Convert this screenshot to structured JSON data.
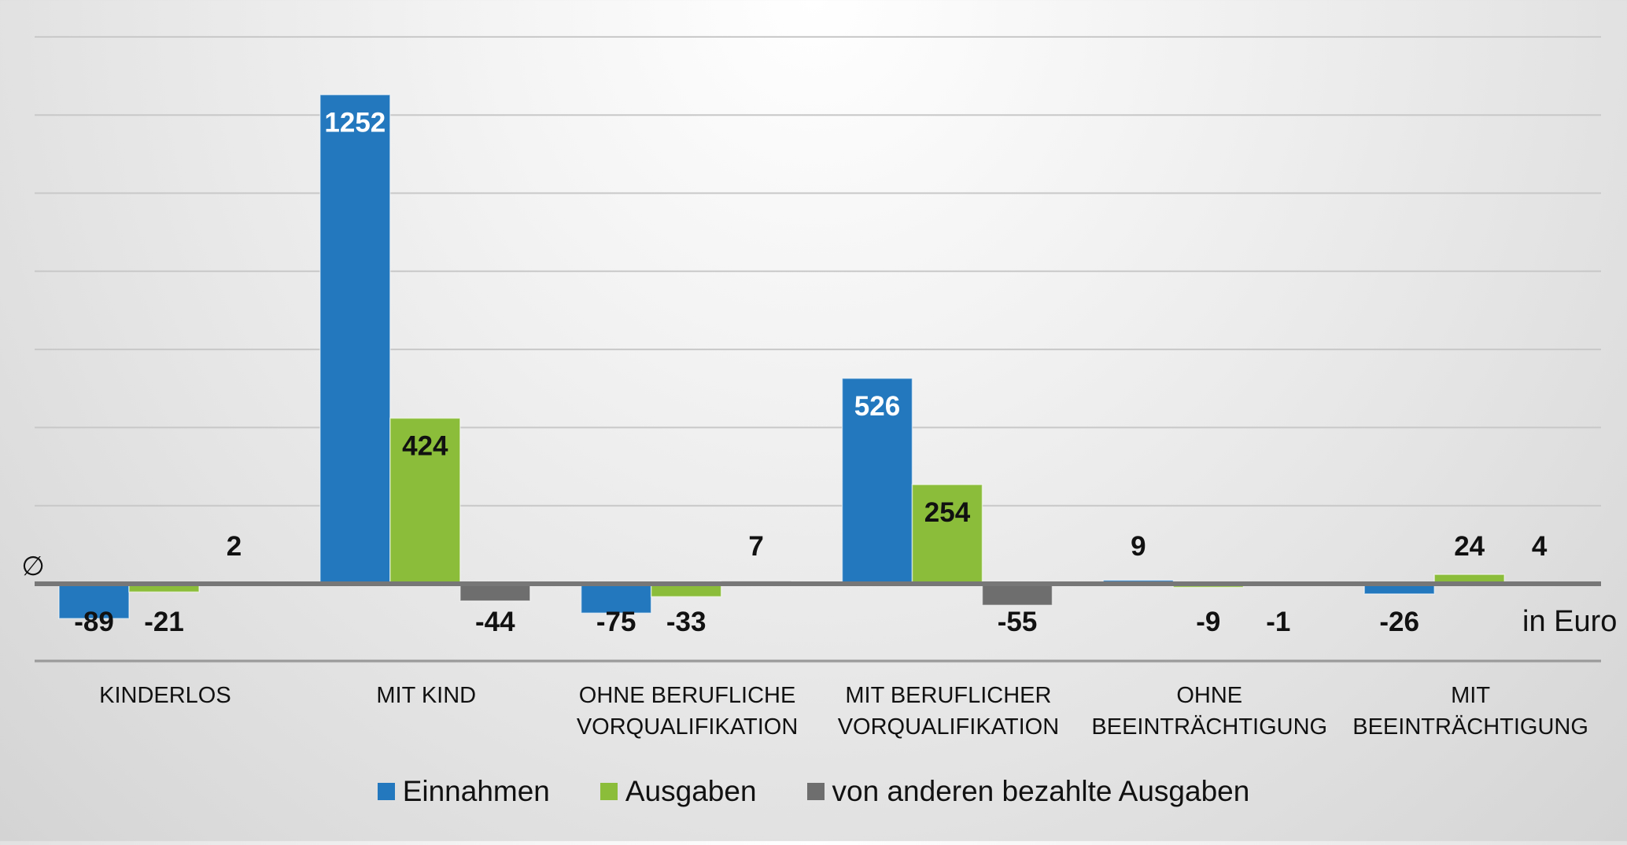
{
  "chart_data": {
    "type": "bar",
    "categories": [
      [
        "KINDERLOS"
      ],
      [
        "MIT KIND"
      ],
      [
        "OHNE BERUFLICHE",
        "VORQUALIFIKATION"
      ],
      [
        "MIT BERUFLICHER",
        "VORQUALIFIKATION"
      ],
      [
        "OHNE",
        "BEEINTRÄCHTIGUNG"
      ],
      [
        "MIT",
        "BEEINTRÄCHTIGUNG"
      ]
    ],
    "series": [
      {
        "name": "Einnahmen",
        "color": "#2378be",
        "values": [
          -89,
          1252,
          -75,
          526,
          9,
          -26
        ]
      },
      {
        "name": "Ausgaben",
        "color": "#8bbd3a",
        "values": [
          -21,
          424,
          -33,
          254,
          -9,
          24
        ]
      },
      {
        "name": "von anderen bezahlte Ausgaben",
        "color": "#6e6e6e",
        "values": [
          2,
          -44,
          7,
          -55,
          -1,
          4
        ]
      }
    ],
    "ylim": [
      -200,
      1400
    ],
    "gridlines": [
      -200,
      200,
      400,
      600,
      800,
      1000,
      1200,
      1400
    ],
    "zero_marker": "∅",
    "unit_label": "in Euro",
    "legend_position": "bottom",
    "grid": true
  }
}
